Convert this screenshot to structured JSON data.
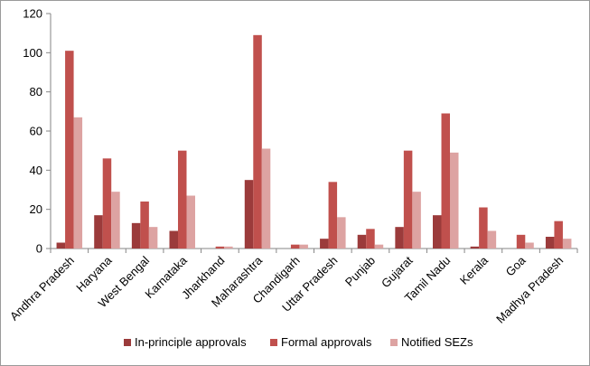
{
  "chart_data": {
    "type": "bar",
    "title": "",
    "xlabel": "",
    "ylabel": "",
    "ylim": [
      0,
      120
    ],
    "yticks": [
      0,
      20,
      40,
      60,
      80,
      100,
      120
    ],
    "grid": false,
    "legend_position": "bottom",
    "categories": [
      "Andhra Pradesh",
      "Haryana",
      "West Bengal",
      "Karnataka",
      "Jharkhand",
      "Maharashtra",
      "Chandigarh",
      "Uttar Pradesh",
      "Punjab",
      "Gujarat",
      "Tamil Nadu",
      "Kerala",
      "Goa",
      "Madhya Pradesh"
    ],
    "series": [
      {
        "name": "In-principle approvals",
        "color": "#9b3b3b",
        "values": [
          3,
          17,
          13,
          9,
          0,
          35,
          0,
          5,
          7,
          11,
          17,
          1,
          0,
          6
        ]
      },
      {
        "name": "Formal approvals",
        "color": "#c0504d",
        "values": [
          101,
          46,
          24,
          50,
          1,
          109,
          2,
          34,
          10,
          50,
          69,
          21,
          7,
          14
        ]
      },
      {
        "name": "Notified SEZs",
        "color": "#dda3a2",
        "values": [
          67,
          29,
          11,
          27,
          1,
          51,
          2,
          16,
          2,
          29,
          49,
          9,
          3,
          5
        ]
      }
    ]
  }
}
